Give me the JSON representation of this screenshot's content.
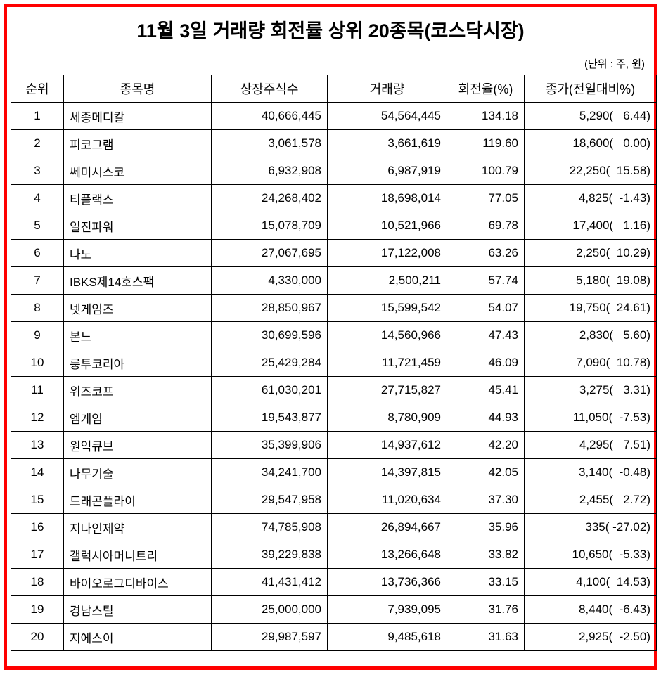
{
  "title": "11월 3일 거래량 회전률 상위 20종목(코스닥시장)",
  "unit_note": "(단위 : 주, 원)",
  "colors": {
    "frame_border": "#ff0000",
    "table_border": "#000000",
    "background": "#ffffff",
    "text": "#000000"
  },
  "table": {
    "headers": [
      "순위",
      "종목명",
      "상장주식수",
      "거래량",
      "회전율(%)",
      "종가(전일대비%)"
    ],
    "rows": [
      {
        "rank": "1",
        "name": "세종메디칼",
        "shares": "40,666,445",
        "volume": "54,564,445",
        "turnover": "134.18",
        "close": "5,290(   6.44)"
      },
      {
        "rank": "2",
        "name": "피코그램",
        "shares": "3,061,578",
        "volume": "3,661,619",
        "turnover": "119.60",
        "close": "18,600(   0.00)"
      },
      {
        "rank": "3",
        "name": "쎄미시스코",
        "shares": "6,932,908",
        "volume": "6,987,919",
        "turnover": "100.79",
        "close": "22,250(  15.58)"
      },
      {
        "rank": "4",
        "name": "티플랙스",
        "shares": "24,268,402",
        "volume": "18,698,014",
        "turnover": "77.05",
        "close": "4,825(  -1.43)"
      },
      {
        "rank": "5",
        "name": "일진파워",
        "shares": "15,078,709",
        "volume": "10,521,966",
        "turnover": "69.78",
        "close": "17,400(   1.16)"
      },
      {
        "rank": "6",
        "name": "나노",
        "shares": "27,067,695",
        "volume": "17,122,008",
        "turnover": "63.26",
        "close": "2,250(  10.29)"
      },
      {
        "rank": "7",
        "name": "IBKS제14호스팩",
        "shares": "4,330,000",
        "volume": "2,500,211",
        "turnover": "57.74",
        "close": "5,180(  19.08)"
      },
      {
        "rank": "8",
        "name": "넷게임즈",
        "shares": "28,850,967",
        "volume": "15,599,542",
        "turnover": "54.07",
        "close": "19,750(  24.61)"
      },
      {
        "rank": "9",
        "name": "본느",
        "shares": "30,699,596",
        "volume": "14,560,966",
        "turnover": "47.43",
        "close": "2,830(   5.60)"
      },
      {
        "rank": "10",
        "name": "룽투코리아",
        "shares": "25,429,284",
        "volume": "11,721,459",
        "turnover": "46.09",
        "close": "7,090(  10.78)"
      },
      {
        "rank": "11",
        "name": "위즈코프",
        "shares": "61,030,201",
        "volume": "27,715,827",
        "turnover": "45.41",
        "close": "3,275(   3.31)"
      },
      {
        "rank": "12",
        "name": "엠게임",
        "shares": "19,543,877",
        "volume": "8,780,909",
        "turnover": "44.93",
        "close": "11,050(  -7.53)"
      },
      {
        "rank": "13",
        "name": "원익큐브",
        "shares": "35,399,906",
        "volume": "14,937,612",
        "turnover": "42.20",
        "close": "4,295(   7.51)"
      },
      {
        "rank": "14",
        "name": "나무기술",
        "shares": "34,241,700",
        "volume": "14,397,815",
        "turnover": "42.05",
        "close": "3,140(  -0.48)"
      },
      {
        "rank": "15",
        "name": "드래곤플라이",
        "shares": "29,547,958",
        "volume": "11,020,634",
        "turnover": "37.30",
        "close": "2,455(   2.72)"
      },
      {
        "rank": "16",
        "name": "지나인제약",
        "shares": "74,785,908",
        "volume": "26,894,667",
        "turnover": "35.96",
        "close": "335( -27.02)"
      },
      {
        "rank": "17",
        "name": "갤럭시아머니트리",
        "shares": "39,229,838",
        "volume": "13,266,648",
        "turnover": "33.82",
        "close": "10,650(  -5.33)"
      },
      {
        "rank": "18",
        "name": "바이오로그디바이스",
        "shares": "41,431,412",
        "volume": "13,736,366",
        "turnover": "33.15",
        "close": "4,100(  14.53)"
      },
      {
        "rank": "19",
        "name": "경남스틸",
        "shares": "25,000,000",
        "volume": "7,939,095",
        "turnover": "31.76",
        "close": "8,440(  -6.43)"
      },
      {
        "rank": "20",
        "name": "지에스이",
        "shares": "29,987,597",
        "volume": "9,485,618",
        "turnover": "31.63",
        "close": "2,925(  -2.50)"
      }
    ]
  }
}
